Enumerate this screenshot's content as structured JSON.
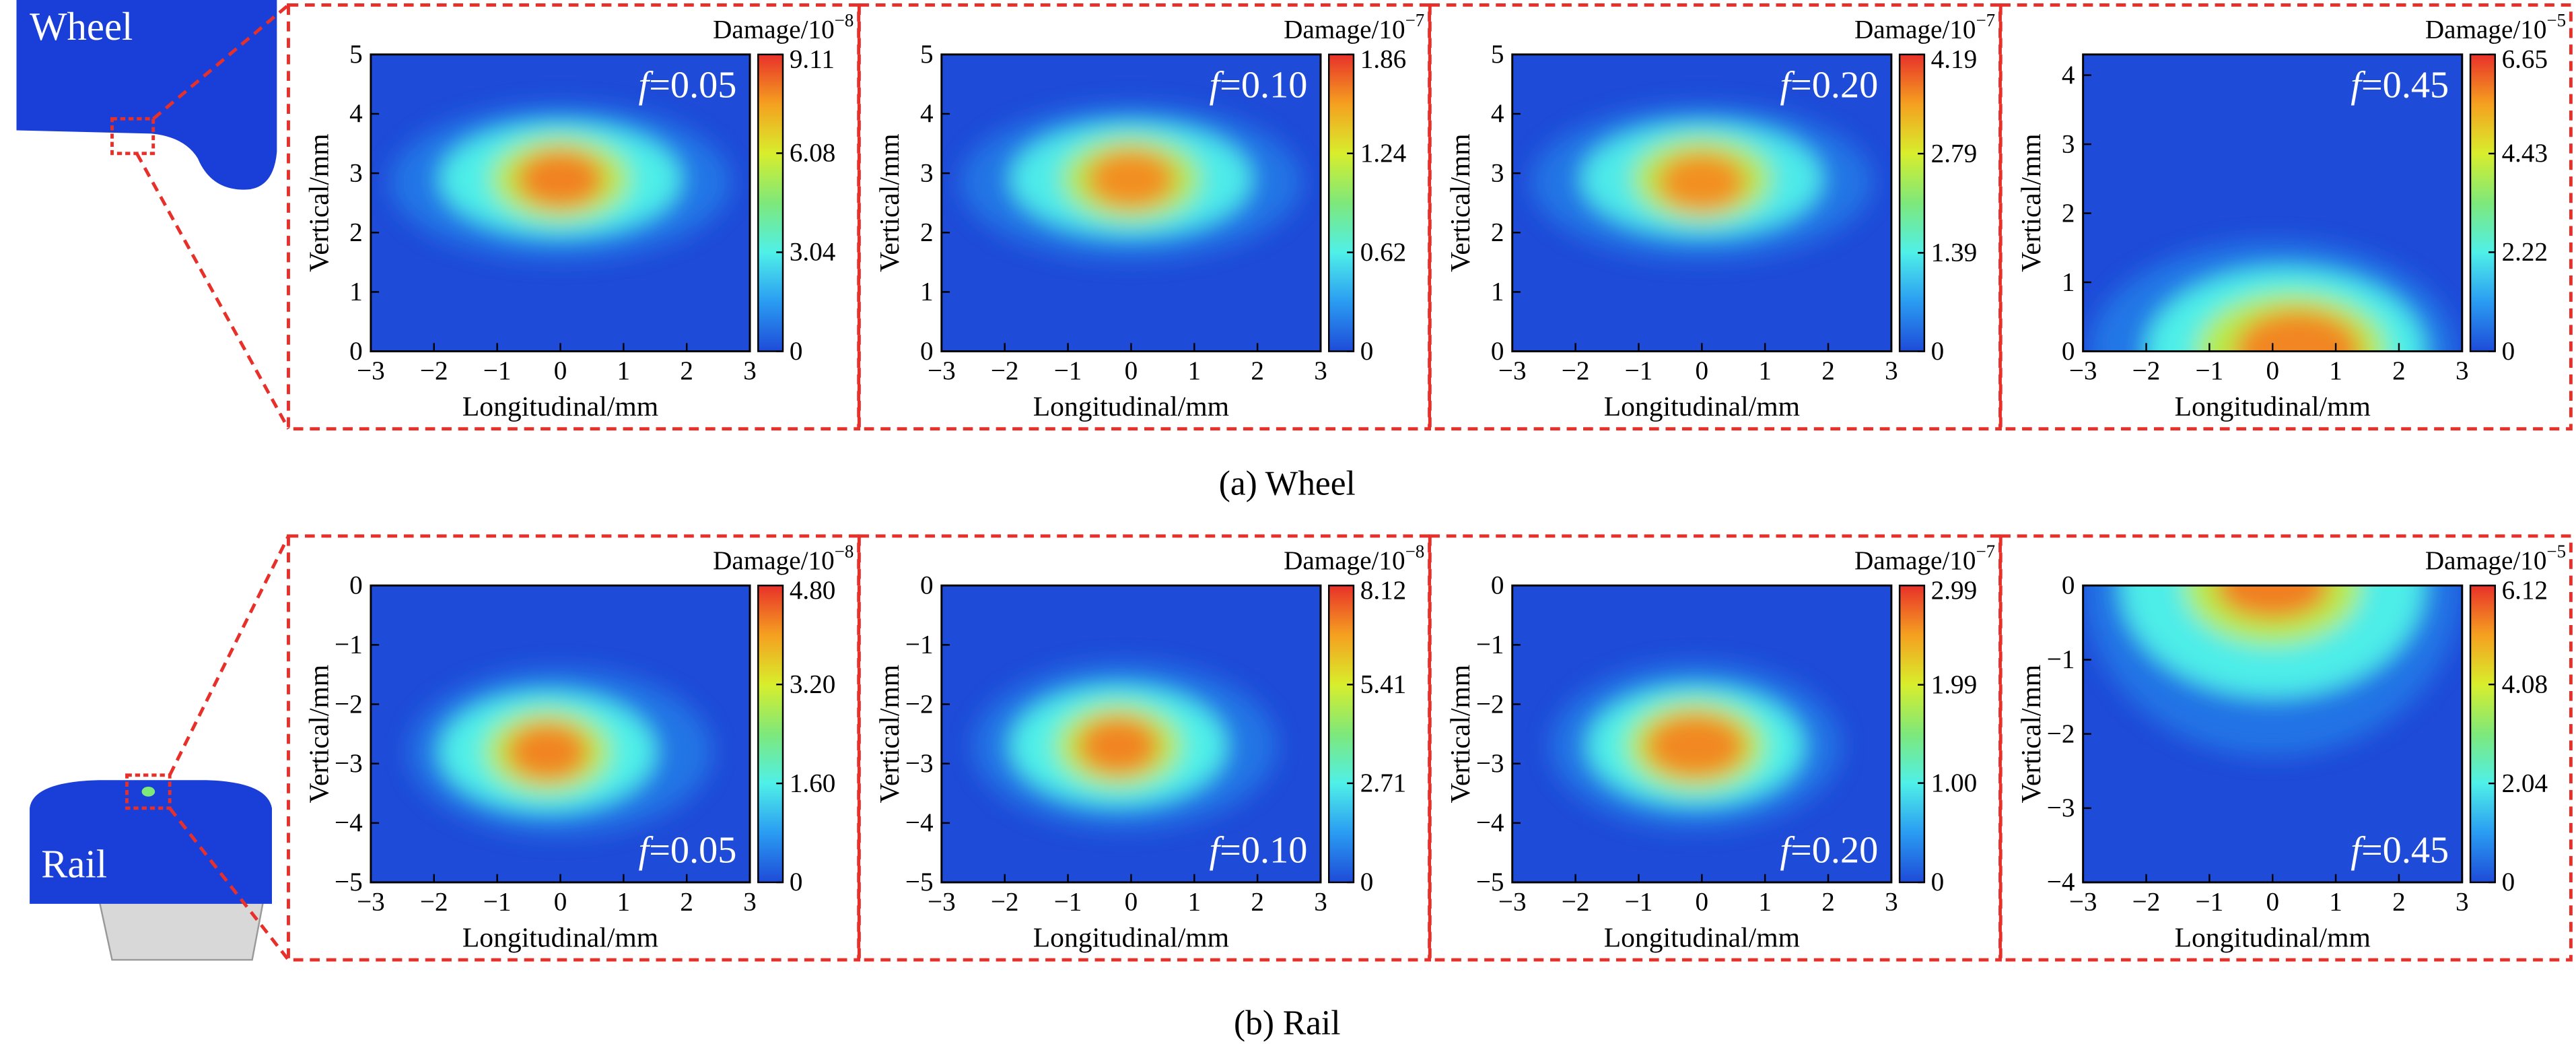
{
  "figure": {
    "captions": [
      "(a) Wheel",
      "(b) Rail"
    ],
    "part_labels": [
      "Wheel",
      "Rail"
    ]
  },
  "chart_data": [
    {
      "type": "heatmap",
      "colorbar_label": "Damage/10",
      "colorbar_exponent": "−8",
      "annotation_symbol": "f",
      "annotation_text": "=0.05",
      "annotation_position": "top-right",
      "xlabel": "Longitudinal/mm",
      "ylabel": "Vertical/mm",
      "xlim": [
        -3,
        3
      ],
      "xticks": [
        {
          "value": -3,
          "label": "−3"
        },
        {
          "value": -2,
          "label": "−2"
        },
        {
          "value": -1,
          "label": "−1"
        },
        0,
        1,
        2,
        3
      ],
      "ylim": [
        0,
        5
      ],
      "yticks": [
        0,
        1,
        2,
        3,
        4,
        5
      ],
      "clim": [
        0,
        9.11
      ],
      "cticks": [
        0,
        3.04,
        6.08,
        9.11
      ],
      "colormap": [
        "#1e4bd8",
        "#2a9cf2",
        "#4ff0e8",
        "#7ee87a",
        "#d8ee2c",
        "#f5a020",
        "#e8302a"
      ],
      "contours": [
        {
          "level": 0.8,
          "cx": 0,
          "cy": 2.85,
          "rx": 2.7,
          "ry": 1.3
        },
        {
          "level": 3.0,
          "cx": 0,
          "cy": 2.9,
          "rx": 1.9,
          "ry": 0.95
        },
        {
          "level": 5.5,
          "cx": 0,
          "cy": 2.9,
          "rx": 1.1,
          "ry": 0.7
        },
        {
          "level": 8.0,
          "cx": 0,
          "cy": 2.9,
          "rx": 0.7,
          "ry": 0.5
        }
      ]
    },
    {
      "type": "heatmap",
      "colorbar_label": "Damage/10",
      "colorbar_exponent": "−7",
      "annotation_symbol": "f",
      "annotation_text": "=0.10",
      "annotation_position": "top-right",
      "xlabel": "Longitudinal/mm",
      "ylabel": "Vertical/mm",
      "xlim": [
        -3,
        3
      ],
      "xticks": [
        {
          "value": -3,
          "label": "−3"
        },
        {
          "value": -2,
          "label": "−2"
        },
        {
          "value": -1,
          "label": "−1"
        },
        0,
        1,
        2,
        3
      ],
      "ylim": [
        0,
        5
      ],
      "yticks": [
        0,
        1,
        2,
        3,
        4,
        5
      ],
      "clim": [
        0,
        1.86
      ],
      "cticks": [
        0,
        0.62,
        1.24,
        1.86
      ],
      "colormap": [
        "#1e4bd8",
        "#2a9cf2",
        "#4ff0e8",
        "#7ee87a",
        "#d8ee2c",
        "#f5a020",
        "#e8302a"
      ],
      "contours": [
        {
          "level": 0.16,
          "cx": 0,
          "cy": 2.85,
          "rx": 2.7,
          "ry": 1.3
        },
        {
          "level": 0.6,
          "cx": 0,
          "cy": 2.9,
          "rx": 1.9,
          "ry": 0.95
        },
        {
          "level": 1.1,
          "cx": 0,
          "cy": 2.9,
          "rx": 1.1,
          "ry": 0.7
        },
        {
          "level": 1.6,
          "cx": 0,
          "cy": 2.9,
          "rx": 0.7,
          "ry": 0.5
        }
      ]
    },
    {
      "type": "heatmap",
      "colorbar_label": "Damage/10",
      "colorbar_exponent": "−7",
      "annotation_symbol": "f",
      "annotation_text": "=0.20",
      "annotation_position": "top-right",
      "xlabel": "Longitudinal/mm",
      "ylabel": "Vertical/mm",
      "xlim": [
        -3,
        3
      ],
      "xticks": [
        {
          "value": -3,
          "label": "−3"
        },
        {
          "value": -2,
          "label": "−2"
        },
        {
          "value": -1,
          "label": "−1"
        },
        0,
        1,
        2,
        3
      ],
      "ylim": [
        0,
        5
      ],
      "yticks": [
        0,
        1,
        2,
        3,
        4,
        5
      ],
      "clim": [
        0,
        4.19
      ],
      "cticks": [
        0,
        1.39,
        2.79,
        4.19
      ],
      "colormap": [
        "#1e4bd8",
        "#2a9cf2",
        "#4ff0e8",
        "#7ee87a",
        "#d8ee2c",
        "#f5a020",
        "#e8302a"
      ],
      "contours": [
        {
          "level": 0.35,
          "cx": 0,
          "cy": 2.85,
          "rx": 2.7,
          "ry": 1.3
        },
        {
          "level": 1.35,
          "cx": 0,
          "cy": 2.9,
          "rx": 1.9,
          "ry": 0.95
        },
        {
          "level": 2.5,
          "cx": 0,
          "cy": 2.9,
          "rx": 1.1,
          "ry": 0.7
        },
        {
          "level": 3.6,
          "cx": 0,
          "cy": 2.85,
          "rx": 0.7,
          "ry": 0.5
        }
      ]
    },
    {
      "type": "heatmap",
      "colorbar_label": "Damage/10",
      "colorbar_exponent": "−5",
      "annotation_symbol": "f",
      "annotation_text": "=0.45",
      "annotation_position": "top-right",
      "xlabel": "Longitudinal/mm",
      "ylabel": "Vertical/mm",
      "xlim": [
        -3,
        3
      ],
      "xticks": [
        {
          "value": -3,
          "label": "−3"
        },
        {
          "value": -2,
          "label": "−2"
        },
        {
          "value": -1,
          "label": "−1"
        },
        0,
        1,
        2,
        3
      ],
      "ylim": [
        0,
        4.3
      ],
      "yticks": [
        0,
        1,
        2,
        3,
        4
      ],
      "clim": [
        0,
        6.65
      ],
      "cticks": [
        0,
        2.22,
        4.43,
        6.65
      ],
      "colormap": [
        "#1e4bd8",
        "#2a9cf2",
        "#4ff0e8",
        "#7ee87a",
        "#d8ee2c",
        "#f5a020",
        "#e8302a"
      ],
      "contours": [
        {
          "level": 0.6,
          "cx": 0,
          "cy": 0,
          "rx": 2.9,
          "ry": 1.6
        },
        {
          "level": 2.2,
          "cx": 0.2,
          "cy": 0,
          "rx": 2.2,
          "ry": 1.2
        },
        {
          "level": 4.0,
          "cx": 0.3,
          "cy": 0,
          "rx": 1.5,
          "ry": 0.85
        },
        {
          "level": 5.8,
          "cx": 0.4,
          "cy": 0,
          "rx": 1.0,
          "ry": 0.6
        }
      ]
    },
    {
      "type": "heatmap",
      "colorbar_label": "Damage/10",
      "colorbar_exponent": "−8",
      "annotation_symbol": "f",
      "annotation_text": "=0.05",
      "annotation_position": "bottom-right",
      "xlabel": "Longitudinal/mm",
      "ylabel": "Vertical/mm",
      "xlim": [
        -3,
        3
      ],
      "xticks": [
        {
          "value": -3,
          "label": "−3"
        },
        {
          "value": -2,
          "label": "−2"
        },
        {
          "value": -1,
          "label": "−1"
        },
        0,
        1,
        2,
        3
      ],
      "ylim": [
        -5,
        0
      ],
      "yticks": [
        {
          "value": -5,
          "label": "−5"
        },
        {
          "value": -4,
          "label": "−4"
        },
        {
          "value": -3,
          "label": "−3"
        },
        {
          "value": -2,
          "label": "−2"
        },
        {
          "value": -1,
          "label": "−1"
        },
        0
      ],
      "clim": [
        0,
        4.8
      ],
      "cticks": [
        0,
        {
          "value": 1.6,
          "label": "1.60"
        },
        {
          "value": 3.2,
          "label": "3.20"
        },
        {
          "value": 4.8,
          "label": "4.80"
        }
      ],
      "colormap": [
        "#1e4bd8",
        "#2a9cf2",
        "#4ff0e8",
        "#7ee87a",
        "#d8ee2c",
        "#f5a020",
        "#e8302a"
      ],
      "contours": [
        {
          "level": 0.4,
          "cx": 0,
          "cy": -2.8,
          "rx": 2.4,
          "ry": 1.4
        },
        {
          "level": 1.6,
          "cx": -0.2,
          "cy": -2.8,
          "rx": 1.7,
          "ry": 1.0
        },
        {
          "level": 2.9,
          "cx": -0.2,
          "cy": -2.8,
          "rx": 1.0,
          "ry": 0.7
        },
        {
          "level": 4.2,
          "cx": -0.2,
          "cy": -2.8,
          "rx": 0.65,
          "ry": 0.5
        }
      ]
    },
    {
      "type": "heatmap",
      "colorbar_label": "Damage/10",
      "colorbar_exponent": "−8",
      "annotation_symbol": "f",
      "annotation_text": "=0.10",
      "annotation_position": "bottom-right",
      "xlabel": "Longitudinal/mm",
      "ylabel": "Vertical/mm",
      "xlim": [
        -3,
        3
      ],
      "xticks": [
        {
          "value": -3,
          "label": "−3"
        },
        {
          "value": -2,
          "label": "−2"
        },
        {
          "value": -1,
          "label": "−1"
        },
        0,
        1,
        2,
        3
      ],
      "ylim": [
        -5,
        0
      ],
      "yticks": [
        {
          "value": -5,
          "label": "−5"
        },
        {
          "value": -4,
          "label": "−4"
        },
        {
          "value": -3,
          "label": "−3"
        },
        {
          "value": -2,
          "label": "−2"
        },
        {
          "value": -1,
          "label": "−1"
        },
        0
      ],
      "clim": [
        0,
        8.12
      ],
      "cticks": [
        0,
        2.71,
        5.41,
        8.12
      ],
      "colormap": [
        "#1e4bd8",
        "#2a9cf2",
        "#4ff0e8",
        "#7ee87a",
        "#d8ee2c",
        "#f5a020",
        "#e8302a"
      ],
      "contours": [
        {
          "level": 0.7,
          "cx": -0.1,
          "cy": -2.7,
          "rx": 2.4,
          "ry": 1.4
        },
        {
          "level": 2.7,
          "cx": -0.2,
          "cy": -2.7,
          "rx": 1.7,
          "ry": 1.0
        },
        {
          "level": 4.9,
          "cx": -0.2,
          "cy": -2.7,
          "rx": 1.0,
          "ry": 0.7
        },
        {
          "level": 7.1,
          "cx": -0.2,
          "cy": -2.7,
          "rx": 0.65,
          "ry": 0.5
        }
      ]
    },
    {
      "type": "heatmap",
      "colorbar_label": "Damage/10",
      "colorbar_exponent": "−7",
      "annotation_symbol": "f",
      "annotation_text": "=0.20",
      "annotation_position": "bottom-right",
      "xlabel": "Longitudinal/mm",
      "ylabel": "Vertical/mm",
      "xlim": [
        -3,
        3
      ],
      "xticks": [
        {
          "value": -3,
          "label": "−3"
        },
        {
          "value": -2,
          "label": "−2"
        },
        {
          "value": -1,
          "label": "−1"
        },
        0,
        1,
        2,
        3
      ],
      "ylim": [
        -5,
        0
      ],
      "yticks": [
        {
          "value": -5,
          "label": "−5"
        },
        {
          "value": -4,
          "label": "−4"
        },
        {
          "value": -3,
          "label": "−3"
        },
        {
          "value": -2,
          "label": "−2"
        },
        {
          "value": -1,
          "label": "−1"
        },
        0
      ],
      "clim": [
        0,
        2.99
      ],
      "cticks": [
        0,
        {
          "value": 1,
          "label": "1.00"
        },
        1.99,
        2.99
      ],
      "colormap": [
        "#1e4bd8",
        "#2a9cf2",
        "#4ff0e8",
        "#7ee87a",
        "#d8ee2c",
        "#f5a020",
        "#e8302a"
      ],
      "contours": [
        {
          "level": 0.25,
          "cx": -0.1,
          "cy": -2.7,
          "rx": 2.3,
          "ry": 1.4
        },
        {
          "level": 1.0,
          "cx": -0.1,
          "cy": -2.7,
          "rx": 1.7,
          "ry": 1.0
        },
        {
          "level": 1.8,
          "cx": -0.1,
          "cy": -2.7,
          "rx": 1.1,
          "ry": 0.75
        },
        {
          "level": 2.6,
          "cx": -0.1,
          "cy": -2.7,
          "rx": 0.8,
          "ry": 0.55
        }
      ]
    },
    {
      "type": "heatmap",
      "colorbar_label": "Damage/10",
      "colorbar_exponent": "−5",
      "annotation_symbol": "f",
      "annotation_text": "=0.45",
      "annotation_position": "bottom-right",
      "xlabel": "Longitudinal/mm",
      "ylabel": "Vertical/mm",
      "xlim": [
        -3,
        3
      ],
      "xticks": [
        {
          "value": -3,
          "label": "−3"
        },
        {
          "value": -2,
          "label": "−2"
        },
        {
          "value": -1,
          "label": "−1"
        },
        0,
        1,
        2,
        3
      ],
      "ylim": [
        -4,
        0
      ],
      "yticks": [
        {
          "value": -4,
          "label": "−4"
        },
        {
          "value": -3,
          "label": "−3"
        },
        {
          "value": -2,
          "label": "−2"
        },
        {
          "value": -1,
          "label": "−1"
        },
        0
      ],
      "clim": [
        0,
        6.12
      ],
      "cticks": [
        0,
        2.04,
        4.08,
        6.12
      ],
      "colormap": [
        "#1e4bd8",
        "#2a9cf2",
        "#4ff0e8",
        "#7ee87a",
        "#d8ee2c",
        "#f5a020",
        "#e8302a"
      ],
      "contours": [
        {
          "level": 0.5,
          "cx": 0,
          "cy": 0,
          "rx": 3.0,
          "ry": 2.3
        },
        {
          "level": 2.0,
          "cx": 0,
          "cy": 0,
          "rx": 2.4,
          "ry": 1.5
        },
        {
          "level": 3.7,
          "cx": 0,
          "cy": 0,
          "rx": 1.4,
          "ry": 0.8
        },
        {
          "level": 5.4,
          "cx": 0,
          "cy": 0,
          "rx": 0.9,
          "ry": 0.45
        }
      ]
    }
  ]
}
